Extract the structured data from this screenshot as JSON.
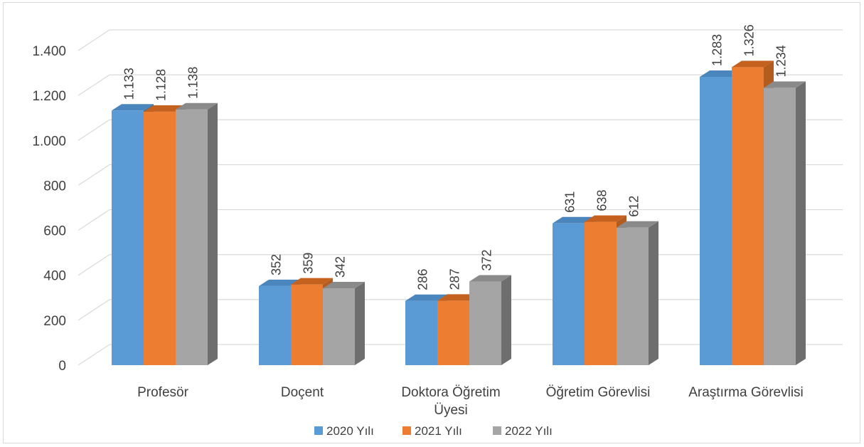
{
  "chart_data": {
    "type": "bar",
    "categories": [
      "Profesör",
      "Doçent",
      "Doktora Öğretim Üyesi",
      "Öğretim Görevlisi",
      "Araştırma Görevlisi"
    ],
    "series": [
      {
        "name": "2020 Yılı",
        "values": [
          1133,
          352,
          286,
          631,
          1283
        ],
        "color": "#5b9bd5",
        "side_color": "#41719c",
        "top_color": "#4a86bd"
      },
      {
        "name": "2021 Yılı",
        "values": [
          1128,
          359,
          287,
          638,
          1326
        ],
        "color": "#ed7d31",
        "side_color": "#b35c20",
        "top_color": "#c4611f"
      },
      {
        "name": "2022 Yılı",
        "values": [
          1138,
          342,
          372,
          612,
          1234
        ],
        "color": "#a5a5a5",
        "side_color": "#6e6e6e",
        "top_color": "#8a8a8a"
      }
    ],
    "data_labels": [
      [
        "1.133",
        "352",
        "286",
        "631",
        "1.283"
      ],
      [
        "1.128",
        "359",
        "287",
        "638",
        "1.326"
      ],
      [
        "1.138",
        "342",
        "372",
        "612",
        "1.234"
      ]
    ],
    "ylim": [
      0,
      1400
    ],
    "y_ticks": [
      0,
      200,
      400,
      600,
      800,
      1000,
      1200,
      1400
    ],
    "y_tick_labels": [
      "0",
      "200",
      "400",
      "600",
      "800",
      "1.000",
      "1.200",
      "1.400"
    ],
    "grid": true,
    "legend_position": "bottom",
    "style": "3d-clustered-column"
  }
}
